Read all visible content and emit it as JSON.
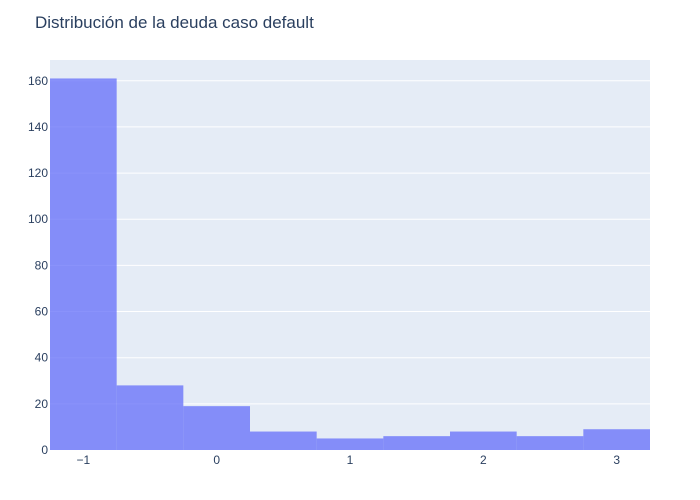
{
  "chart_data": {
    "type": "bar",
    "title": "Distribución de la deuda caso default",
    "xlabel": "",
    "ylabel": "",
    "bin_edges": [
      -1.25,
      -0.75,
      -0.25,
      0.25,
      0.75,
      1.25,
      1.75,
      2.25,
      2.75,
      3.25
    ],
    "values": [
      161,
      28,
      19,
      8,
      5,
      6,
      8,
      6,
      9
    ],
    "xlim": [
      -1.25,
      3.25
    ],
    "ylim": [
      0,
      169
    ],
    "x_ticks": [
      -1,
      0,
      1,
      2,
      3
    ],
    "x_tick_labels": [
      "−1",
      "0",
      "1",
      "2",
      "3"
    ],
    "y_ticks": [
      0,
      20,
      40,
      60,
      80,
      100,
      120,
      140,
      160
    ],
    "y_tick_labels": [
      "0",
      "20",
      "40",
      "60",
      "80",
      "100",
      "120",
      "140",
      "160"
    ],
    "grid": true,
    "bar_color": "#636efa",
    "bar_opacity": 0.75,
    "plot_background": "#e5ecf6",
    "text_color": "#2a3f5f"
  }
}
